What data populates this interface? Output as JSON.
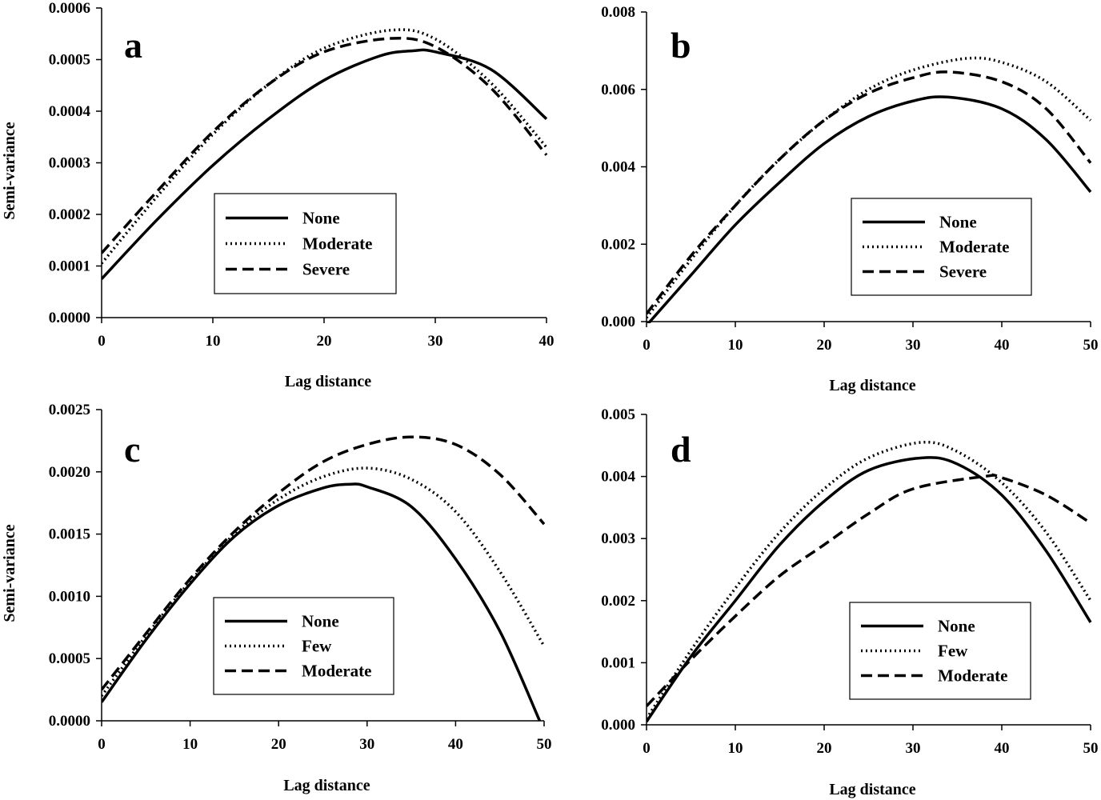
{
  "chart_data": [
    {
      "type": "line",
      "panel": "a",
      "xlabel": "Lag distance",
      "ylabel": "Semi-variance",
      "xlim": [
        0,
        40
      ],
      "ylim": [
        0,
        0.0006
      ],
      "xticks": [
        0,
        10,
        20,
        30,
        40
      ],
      "xtick_labels": [
        "0",
        "10",
        "20",
        "30",
        "40"
      ],
      "yticks": [
        0,
        0.0001,
        0.0002,
        0.0003,
        0.0004,
        0.0005,
        0.0006
      ],
      "ytick_labels": [
        "0.0000",
        "0.0001",
        "0.0002",
        "0.0003",
        "0.0004",
        "0.0005",
        "0.0006"
      ],
      "legend_position": "center",
      "series": [
        {
          "name": "None",
          "style": "solid",
          "x": [
            0,
            5,
            10,
            15,
            20,
            25,
            28,
            30,
            35,
            40
          ],
          "y": [
            7.5e-05,
            0.00019,
            0.000295,
            0.000385,
            0.00046,
            0.000507,
            0.000517,
            0.000515,
            0.000481,
            0.000385
          ]
        },
        {
          "name": "Moderate",
          "style": "dotted",
          "x": [
            0,
            5,
            10,
            15,
            20,
            26,
            30,
            35,
            40
          ],
          "y": [
            0.000105,
            0.000235,
            0.000355,
            0.000452,
            0.000522,
            0.000557,
            0.00054,
            0.000455,
            0.00033
          ]
        },
        {
          "name": "Severe",
          "style": "dashed",
          "x": [
            0,
            5,
            10,
            15,
            20,
            26,
            30,
            35,
            40
          ],
          "y": [
            0.000125,
            0.000245,
            0.00036,
            0.000452,
            0.000515,
            0.000541,
            0.000525,
            0.000445,
            0.000315
          ]
        }
      ]
    },
    {
      "type": "line",
      "panel": "b",
      "xlabel": "Lag distance",
      "ylabel": "",
      "xlim": [
        0,
        50
      ],
      "ylim": [
        0,
        0.008
      ],
      "xticks": [
        0,
        10,
        20,
        30,
        40,
        50
      ],
      "xtick_labels": [
        "0",
        "10",
        "20",
        "30",
        "40",
        "50"
      ],
      "yticks": [
        0,
        0.002,
        0.004,
        0.006,
        0.008
      ],
      "ytick_labels": [
        "0.000",
        "0.002",
        "0.004",
        "0.006",
        "0.008"
      ],
      "legend_position": "bottom-right",
      "series": [
        {
          "name": "None",
          "style": "solid",
          "x": [
            0,
            5,
            10,
            15,
            20,
            25,
            30,
            34,
            40,
            45,
            50
          ],
          "y": [
            -0.0001,
            0.0012,
            0.0025,
            0.0036,
            0.0046,
            0.0053,
            0.0057,
            0.0058,
            0.0055,
            0.0047,
            0.00335
          ]
        },
        {
          "name": "Moderate",
          "style": "dotted",
          "x": [
            0,
            5,
            10,
            15,
            20,
            25,
            30,
            36,
            40,
            45,
            50
          ],
          "y": [
            0.0001,
            0.0016,
            0.003,
            0.0042,
            0.0052,
            0.006,
            0.0065,
            0.0068,
            0.0067,
            0.0062,
            0.0052
          ]
        },
        {
          "name": "Severe",
          "style": "dashed",
          "x": [
            0,
            5,
            10,
            15,
            20,
            25,
            30,
            34,
            40,
            45,
            50
          ],
          "y": [
            0.0002,
            0.0017,
            0.003,
            0.0042,
            0.0052,
            0.0059,
            0.0063,
            0.00645,
            0.0062,
            0.0055,
            0.0041
          ]
        }
      ]
    },
    {
      "type": "line",
      "panel": "c",
      "xlabel": "Lag distance",
      "ylabel": "Semi-variance",
      "xlim": [
        0,
        50
      ],
      "ylim": [
        0,
        0.0025
      ],
      "xticks": [
        0,
        10,
        20,
        30,
        40,
        50
      ],
      "xtick_labels": [
        "0",
        "10",
        "20",
        "30",
        "40",
        "50"
      ],
      "yticks": [
        0,
        0.0005,
        0.001,
        0.0015,
        0.002,
        0.0025
      ],
      "ytick_labels": [
        "0.0000",
        "0.0005",
        "0.0010",
        "0.0015",
        "0.0020",
        "0.0025"
      ],
      "legend_position": "bottom-center",
      "series": [
        {
          "name": "None",
          "style": "solid",
          "x": [
            0,
            5,
            10,
            15,
            20,
            25,
            28,
            30,
            35,
            40,
            45,
            49.5
          ],
          "y": [
            0.00015,
            0.00065,
            0.0011,
            0.00148,
            0.00173,
            0.00187,
            0.0019,
            0.00188,
            0.00172,
            0.0013,
            0.00072,
            0.0
          ]
        },
        {
          "name": "Few",
          "style": "dotted",
          "x": [
            0,
            5,
            10,
            15,
            20,
            25,
            30,
            35,
            40,
            45,
            50
          ],
          "y": [
            0.0002,
            0.00068,
            0.00112,
            0.0015,
            0.00178,
            0.00196,
            0.00203,
            0.00194,
            0.00168,
            0.0012,
            0.0006
          ]
        },
        {
          "name": "Moderate",
          "style": "dashed",
          "x": [
            0,
            5,
            10,
            15,
            20,
            25,
            30,
            35,
            40,
            45,
            50
          ],
          "y": [
            0.00025,
            0.0007,
            0.00114,
            0.00152,
            0.00183,
            0.00208,
            0.00222,
            0.00228,
            0.00222,
            0.00198,
            0.00158
          ]
        }
      ]
    },
    {
      "type": "line",
      "panel": "d",
      "xlabel": "Lag distance",
      "ylabel": "",
      "xlim": [
        0,
        50
      ],
      "ylim": [
        0,
        0.005
      ],
      "xticks": [
        0,
        10,
        20,
        30,
        40,
        50
      ],
      "xtick_labels": [
        "0",
        "10",
        "20",
        "30",
        "40",
        "50"
      ],
      "yticks": [
        0,
        0.001,
        0.002,
        0.003,
        0.004,
        0.005
      ],
      "ytick_labels": [
        "0.000",
        "0.001",
        "0.002",
        "0.003",
        "0.004",
        "0.005"
      ],
      "legend_position": "bottom-right",
      "series": [
        {
          "name": "None",
          "style": "solid",
          "x": [
            0,
            5,
            10,
            15,
            20,
            25,
            31,
            35,
            40,
            45,
            50
          ],
          "y": [
            5e-05,
            0.0011,
            0.002,
            0.0029,
            0.0036,
            0.0041,
            0.0043,
            0.0042,
            0.0037,
            0.0028,
            0.00165
          ]
        },
        {
          "name": "Few",
          "style": "dotted",
          "x": [
            0,
            5,
            10,
            15,
            20,
            25,
            31,
            35,
            40,
            45,
            50
          ],
          "y": [
            0.0001,
            0.0012,
            0.0022,
            0.0031,
            0.0038,
            0.0043,
            0.00455,
            0.0044,
            0.0039,
            0.0031,
            0.002
          ]
        },
        {
          "name": "Moderate",
          "style": "dashed",
          "x": [
            0,
            5,
            10,
            15,
            20,
            25,
            30,
            38,
            40,
            45,
            50
          ],
          "y": [
            0.0003,
            0.00105,
            0.00175,
            0.0024,
            0.0029,
            0.0034,
            0.0038,
            0.004,
            0.00398,
            0.0037,
            0.00325
          ]
        }
      ]
    }
  ]
}
